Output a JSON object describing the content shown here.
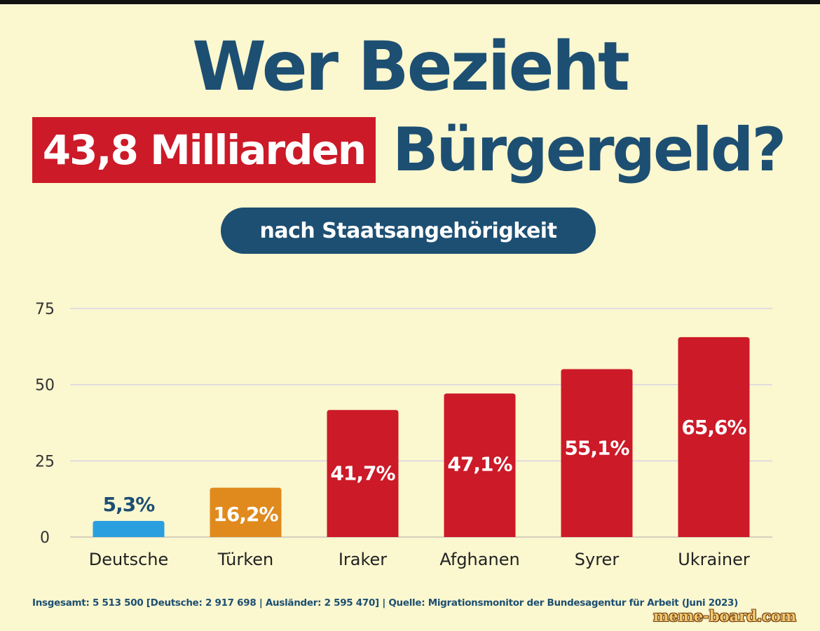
{
  "header": {
    "title_line1": "Wer Bezieht",
    "amount_badge": "43,8 Milliarden",
    "title_line2": "Bürgergeld?",
    "subtitle_pill": "nach Staatsangehörigkeit"
  },
  "footer": {
    "source_text": "Insgesamt: 5 513 500 [Deutsche: 2 917 698 | Ausländer: 2 595 470] | Quelle: Migrationsmonitor der Bundesagentur für Arbeit (Juni 2023)",
    "watermark": "meme-board.com"
  },
  "colors": {
    "background": "#fbf7cf",
    "title": "#1d4f72",
    "badge_red": "#cc1a28",
    "bar_blue": "#2a9fe0",
    "bar_orange": "#e08a1e",
    "bar_red": "#cc1a28"
  },
  "chart_data": {
    "type": "bar",
    "categories": [
      "Deutsche",
      "Türken",
      "Iraker",
      "Afghanen",
      "Syrer",
      "Ukrainer"
    ],
    "values": [
      5.3,
      16.2,
      41.7,
      47.1,
      55.1,
      65.6
    ],
    "value_labels": [
      "5,3%",
      "16,2%",
      "41,7%",
      "47,1%",
      "55,1%",
      "65,6%"
    ],
    "bar_colors": [
      "#2a9fe0",
      "#e08a1e",
      "#cc1a28",
      "#cc1a28",
      "#cc1a28",
      "#cc1a28"
    ],
    "yticks": [
      0,
      25,
      50,
      75
    ],
    "ytick_labels": [
      "0",
      "25",
      "50",
      "75"
    ],
    "ylim": [
      0,
      75
    ],
    "grid": true,
    "xlabel": "",
    "ylabel": ""
  }
}
